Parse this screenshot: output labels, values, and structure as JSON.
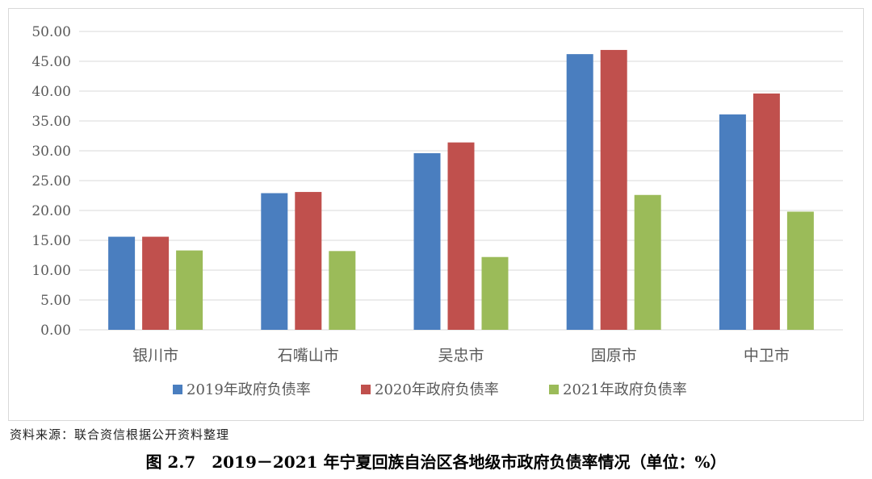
{
  "chart_data": {
    "type": "bar",
    "categories": [
      "银川市",
      "石嘴山市",
      "吴忠市",
      "固原市",
      "中卫市"
    ],
    "series": [
      {
        "name": "2019年政府负债率",
        "color": "#4a7ebf",
        "values": [
          15.6,
          22.9,
          29.6,
          46.2,
          36.1
        ]
      },
      {
        "name": "2020年政府负债率",
        "color": "#c0504d",
        "values": [
          15.6,
          23.1,
          31.4,
          46.9,
          39.6
        ]
      },
      {
        "name": "2021年政府负债率",
        "color": "#9bbb59",
        "values": [
          13.3,
          13.2,
          12.2,
          22.6,
          19.8
        ]
      }
    ],
    "ylim": [
      0,
      50
    ],
    "yticks": [
      "0.00",
      "5.00",
      "10.00",
      "15.00",
      "20.00",
      "25.00",
      "30.00",
      "35.00",
      "40.00",
      "45.00",
      "50.00"
    ],
    "grid": true,
    "gridline_color": "#d9d9d9",
    "legend_placement": "bottom"
  },
  "source_note": "资料来源：联合资信根据公开资料整理",
  "caption": "图 2.7　2019－2021 年宁夏回族自治区各地级市政府负债率情况（单位：%）"
}
